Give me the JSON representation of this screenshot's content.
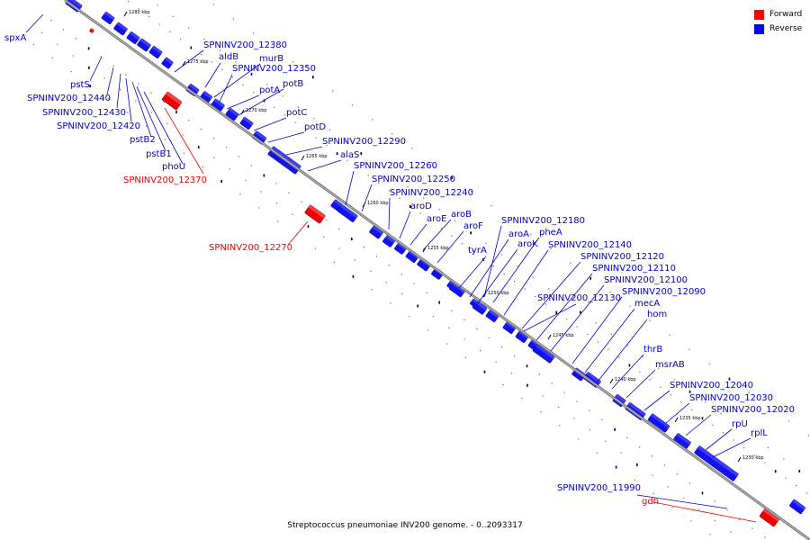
{
  "legend": {
    "forward": {
      "label": "Forward",
      "color": "#ff0000"
    },
    "reverse": {
      "label": "Reverse",
      "color": "#0000ff"
    }
  },
  "caption": "Streptococcus pneumoniae INV200 genome. - 0..2093317",
  "scale_labels": [
    "1280 kbp",
    "1275 kbp",
    "1270 kbp",
    "1265 kbp",
    "1260 kbp",
    "1255 kbp",
    "1250 kbp",
    "1245 kbp",
    "1240 kbp",
    "1235 kbp",
    "1230 kbp"
  ],
  "gene_labels": [
    {
      "text": "spxA",
      "strand": "reverse"
    },
    {
      "text": "pstS",
      "strand": "reverse"
    },
    {
      "text": "SPNINV200_12440",
      "strand": "reverse"
    },
    {
      "text": "SPNINV200_12430",
      "strand": "reverse"
    },
    {
      "text": "SPNINV200_12420",
      "strand": "reverse"
    },
    {
      "text": "pstB2",
      "strand": "reverse"
    },
    {
      "text": "pstB1",
      "strand": "reverse"
    },
    {
      "text": "phoU",
      "strand": "reverse"
    },
    {
      "text": "SPNINV200_12370",
      "strand": "forward"
    },
    {
      "text": "SPNINV200_12380",
      "strand": "reverse"
    },
    {
      "text": "aldB",
      "strand": "reverse"
    },
    {
      "text": "murB",
      "strand": "reverse"
    },
    {
      "text": "SPNINV200_12350",
      "strand": "reverse"
    },
    {
      "text": "potA",
      "strand": "reverse"
    },
    {
      "text": "potB",
      "strand": "reverse"
    },
    {
      "text": "potC",
      "strand": "reverse"
    },
    {
      "text": "potD",
      "strand": "reverse"
    },
    {
      "text": "SPNINV200_12290",
      "strand": "reverse"
    },
    {
      "text": "alaS",
      "strand": "reverse"
    },
    {
      "text": "SPNINV200_12260",
      "strand": "reverse"
    },
    {
      "text": "SPNINV200_12250",
      "strand": "reverse"
    },
    {
      "text": "SPNINV200_12240",
      "strand": "reverse"
    },
    {
      "text": "aroD",
      "strand": "reverse"
    },
    {
      "text": "aroE",
      "strand": "reverse"
    },
    {
      "text": "aroB",
      "strand": "reverse"
    },
    {
      "text": "aroF",
      "strand": "reverse"
    },
    {
      "text": "SPNINV200_12270",
      "strand": "forward"
    },
    {
      "text": "SPNINV200_12180",
      "strand": "reverse"
    },
    {
      "text": "pheA",
      "strand": "reverse"
    },
    {
      "text": "aroA",
      "strand": "reverse"
    },
    {
      "text": "aroK",
      "strand": "reverse"
    },
    {
      "text": "tyrA",
      "strand": "reverse"
    },
    {
      "text": "SPNINV200_12140",
      "strand": "reverse"
    },
    {
      "text": "SPNINV200_12120",
      "strand": "reverse"
    },
    {
      "text": "SPNINV200_12110",
      "strand": "reverse"
    },
    {
      "text": "SPNINV200_12100",
      "strand": "reverse"
    },
    {
      "text": "SPNINV200_12130",
      "strand": "reverse"
    },
    {
      "text": "SPNINV200_12090",
      "strand": "reverse"
    },
    {
      "text": "mecA",
      "strand": "reverse"
    },
    {
      "text": "hom",
      "strand": "reverse"
    },
    {
      "text": "thrB",
      "strand": "reverse"
    },
    {
      "text": "msrAB",
      "strand": "reverse"
    },
    {
      "text": "SPNINV200_12040",
      "strand": "reverse"
    },
    {
      "text": "SPNINV200_12030",
      "strand": "reverse"
    },
    {
      "text": "SPNINV200_12020",
      "strand": "reverse"
    },
    {
      "text": "rpU",
      "strand": "reverse"
    },
    {
      "text": "rplL",
      "strand": "reverse"
    },
    {
      "text": "SPNINV200_11990",
      "strand": "reverse"
    },
    {
      "text": "gdh",
      "strand": "forward"
    }
  ]
}
